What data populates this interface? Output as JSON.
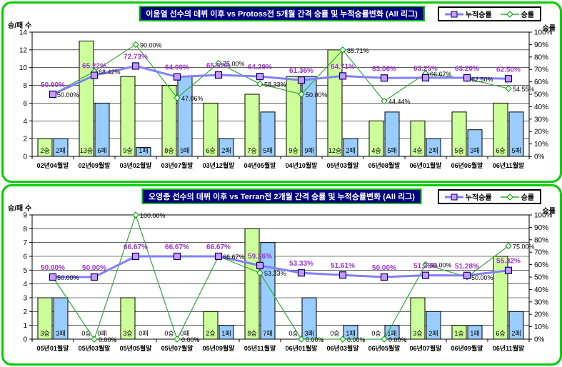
{
  "colors": {
    "panel_border": "#00CC00",
    "title_bg": "#000080",
    "title_text": "#FFFFFF",
    "win_bar_fill": "#CCFF99",
    "loss_bar_fill": "#99CCFF",
    "bar_stroke": "#000000",
    "cumulative_line": "#8080FF",
    "cumulative_marker_fill": "#CC99FF",
    "cumulative_marker_stroke": "#000066",
    "cumulative_label": "#9933CC",
    "period_line": "#33AA33",
    "period_marker_fill": "#EEFFEE",
    "period_marker_stroke": "#009900",
    "period_label": "#000000",
    "grid": "#000000"
  },
  "chart_data": [
    {
      "type": "bar+line",
      "title": "이윤열 선수의 데뷔 이후 vs Protoss전 5개월 간격 승률 및 누적승률변화 (All 리그)",
      "left_axis": {
        "title": "승/패 수",
        "min": 0,
        "max": 14,
        "step": 2
      },
      "right_axis": {
        "title": "승률",
        "min": 0,
        "max": 100,
        "step": 10,
        "suffix": "%"
      },
      "legend": [
        {
          "name": "누적승률",
          "marker": "square"
        },
        {
          "name": "승률",
          "marker": "diamond"
        }
      ],
      "categories": [
        "02년04월말",
        "02년09월말",
        "03년02월말",
        "03년07월말",
        "03년12월말",
        "04년05월말",
        "04년10월말",
        "05년03월말",
        "05년08월말",
        "06년01월말",
        "06년06월말",
        "06년11월말"
      ],
      "bars": {
        "win_suffix": "승",
        "loss_suffix": "패",
        "wins": [
          2,
          13,
          9,
          8,
          6,
          7,
          9,
          12,
          4,
          4,
          5,
          6
        ],
        "losses": [
          2,
          6,
          1,
          9,
          2,
          5,
          9,
          2,
          5,
          2,
          3,
          5
        ]
      },
      "series": [
        {
          "name": "누적승률",
          "values": [
            50.0,
            65.22,
            72.73,
            64.0,
            65.52,
            64.29,
            61.36,
            64.71,
            63.06,
            63.25,
            63.2,
            62.5
          ],
          "labels": [
            "50.00%",
            "65.22%",
            "72.73%",
            "64.00%",
            "65.52%",
            "64.29%",
            "61.36%",
            "64.71%",
            "63.06%",
            "63.25%",
            "63.20%",
            "62.50%"
          ]
        },
        {
          "name": "승률",
          "values": [
            50.0,
            68.42,
            90.0,
            47.06,
            75.0,
            58.33,
            50.0,
            85.71,
            44.44,
            66.67,
            62.5,
            54.55
          ],
          "labels": [
            "50.00%",
            "68.42%",
            "90.00%",
            "47.06%",
            "75.00%",
            "58.33%",
            "50.00%",
            "85.71%",
            "44.44%",
            "66.67%",
            "62.50%",
            "54.55%"
          ]
        }
      ]
    },
    {
      "type": "bar+line",
      "title": "오영종 선수의 데뷔 이후 vs Terran전 2개월 간격 승률 및 누적승률변화 (All 리그)",
      "left_axis": {
        "title": "승/패 수",
        "min": 0,
        "max": 9,
        "step": 1
      },
      "right_axis": {
        "title": "승률",
        "min": 0,
        "max": 100,
        "step": 10,
        "suffix": "%"
      },
      "legend": [
        {
          "name": "누적승률",
          "marker": "square"
        },
        {
          "name": "승률",
          "marker": "diamond"
        }
      ],
      "categories": [
        "05년01월말",
        "05년03월말",
        "05년05월말",
        "05년07월말",
        "05년09월말",
        "05년11월말",
        "06년01월말",
        "06년03월말",
        "06년05월말",
        "06년07월말",
        "06년09월말",
        "06년11월말"
      ],
      "bars": {
        "win_suffix": "승",
        "loss_suffix": "패",
        "wins": [
          3,
          0,
          3,
          0,
          2,
          8,
          0,
          0,
          0,
          3,
          1,
          6
        ],
        "losses": [
          3,
          0,
          0,
          0,
          1,
          7,
          3,
          1,
          1,
          2,
          1,
          2
        ]
      },
      "series": [
        {
          "name": "누적승률",
          "values": [
            50.0,
            50.0,
            66.67,
            66.67,
            66.67,
            59.26,
            53.33,
            51.61,
            50.0,
            51.35,
            51.28,
            55.32
          ],
          "labels": [
            "50.00%",
            "50.00%",
            "66.67%",
            "66.67%",
            "66.67%",
            "59.26%",
            "53.33%",
            "51.61%",
            "50.00%",
            "51.35%",
            "51.28%",
            "55.32%"
          ]
        },
        {
          "name": "승률",
          "values": [
            50.0,
            0.0,
            100.0,
            0.0,
            66.67,
            53.33,
            0.0,
            0.0,
            0.0,
            60.0,
            50.0,
            75.0
          ],
          "labels": [
            "50.00%",
            "0.00%",
            "100.00%",
            "0.00%",
            "66.67%",
            "53.33%",
            "0.00%",
            "0.00%",
            "0.00%",
            "60.00%",
            "50.00%",
            "75.00%"
          ]
        }
      ]
    }
  ]
}
